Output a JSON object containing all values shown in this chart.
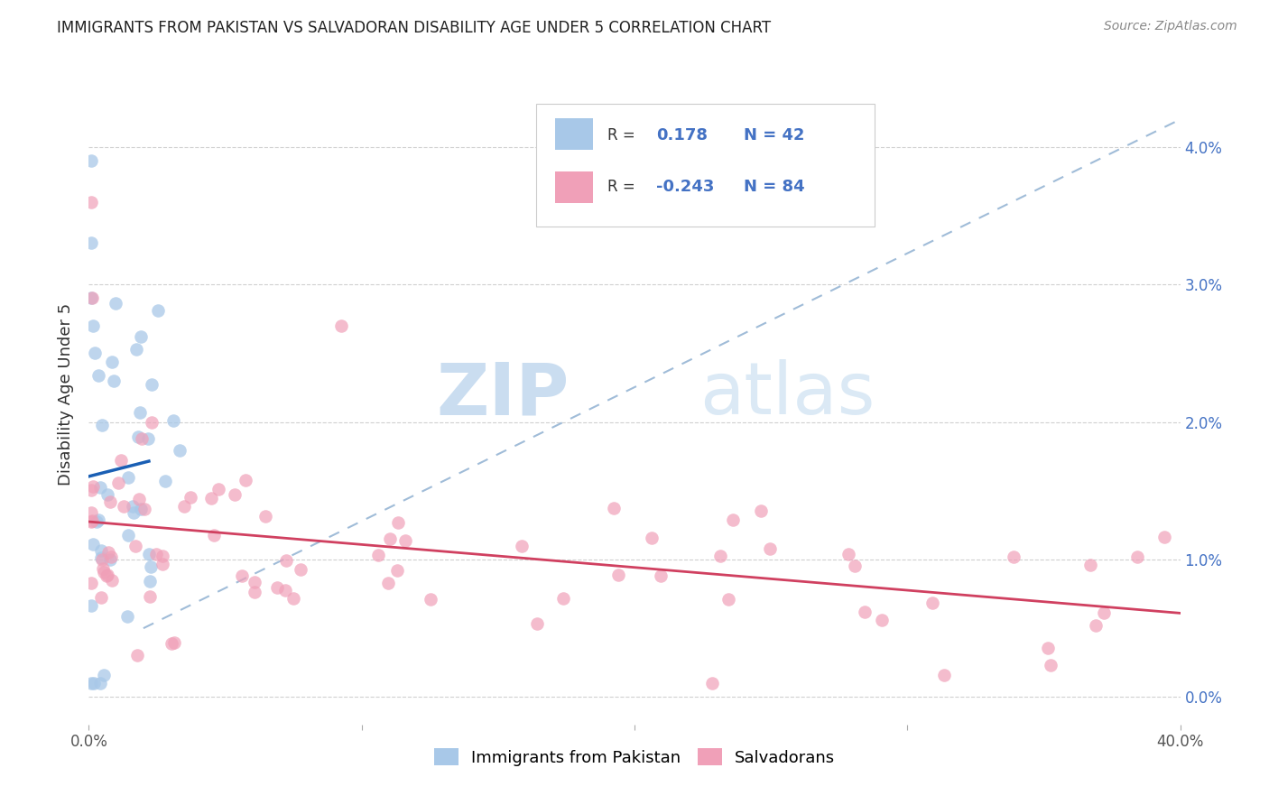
{
  "title": "IMMIGRANTS FROM PAKISTAN VS SALVADORAN DISABILITY AGE UNDER 5 CORRELATION CHART",
  "source": "Source: ZipAtlas.com",
  "ylabel": "Disability Age Under 5",
  "watermark_zip": "ZIP",
  "watermark_atlas": "atlas",
  "legend_label1": "Immigrants from Pakistan",
  "legend_label2": "Salvadorans",
  "pakistan_color": "#a8c8e8",
  "salvador_color": "#f0a0b8",
  "pakistan_line_color": "#1a5fb4",
  "salvador_line_color": "#d04060",
  "diag_line_color": "#a0bcd8",
  "background": "#ffffff",
  "grid_color": "#d0d0d0",
  "xlim": [
    0.0,
    0.4
  ],
  "ylim": [
    -0.002,
    0.046
  ],
  "ytick_positions": [
    0.0,
    0.01,
    0.02,
    0.03,
    0.04
  ],
  "ytick_labels": [
    "0.0%",
    "1.0%",
    "2.0%",
    "3.0%",
    "4.0%"
  ],
  "xtick_positions": [
    0.0,
    0.1,
    0.2,
    0.3,
    0.4
  ],
  "xtick_labels": [
    "0.0%",
    "",
    "",
    "",
    "40.0%"
  ],
  "r1": "0.178",
  "n1": "42",
  "r2": "-0.243",
  "n2": "84"
}
